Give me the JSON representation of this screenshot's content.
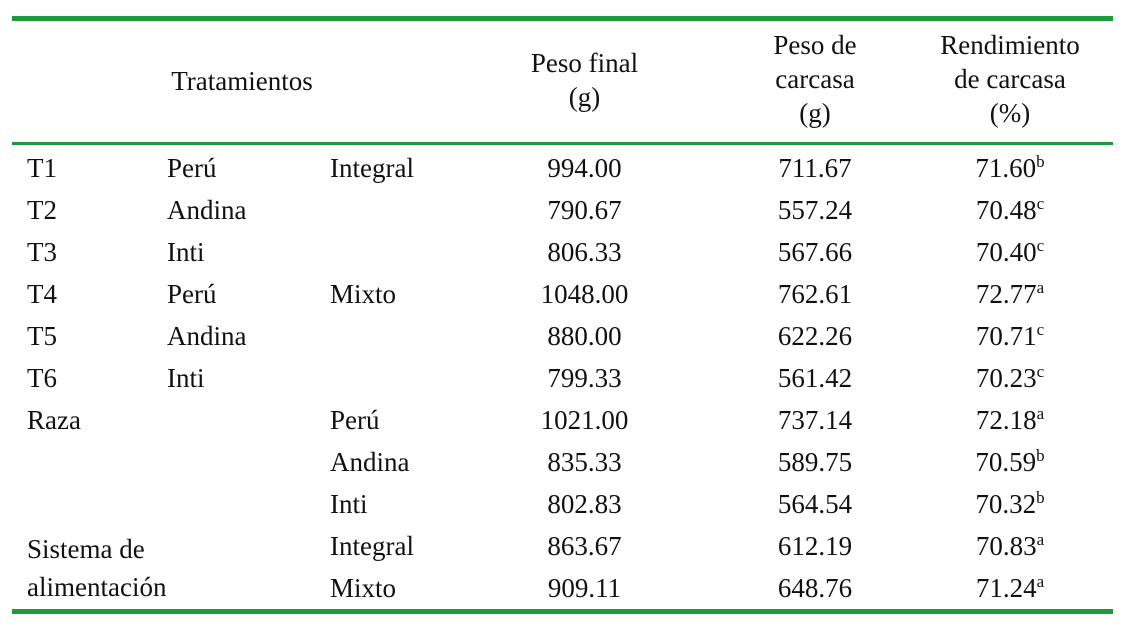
{
  "header": {
    "tratamientos": "Tratamientos",
    "peso_final": [
      "Peso final",
      "(g)"
    ],
    "peso_carcasa": [
      "Peso de",
      "carcasa",
      "(g)"
    ],
    "rendimiento": [
      "Rendimiento",
      "de carcasa",
      "(%)"
    ]
  },
  "rows": [
    {
      "c1": "T1",
      "c2": "Perú",
      "c3": "Integral",
      "peso_final": "994.00",
      "peso_carcasa": "711.67",
      "rend": "71.60",
      "sup": "b"
    },
    {
      "c1": "T2",
      "c2": "Andina",
      "c3": "",
      "peso_final": "790.67",
      "peso_carcasa": "557.24",
      "rend": "70.48",
      "sup": "c"
    },
    {
      "c1": "T3",
      "c2": "Inti",
      "c3": "",
      "peso_final": "806.33",
      "peso_carcasa": "567.66",
      "rend": "70.40",
      "sup": "c"
    },
    {
      "c1": "T4",
      "c2": "Perú",
      "c3": "Mixto",
      "peso_final": "1048.00",
      "peso_carcasa": "762.61",
      "rend": "72.77",
      "sup": "a"
    },
    {
      "c1": "T5",
      "c2": "Andina",
      "c3": "",
      "peso_final": "880.00",
      "peso_carcasa": "622.26",
      "rend": "70.71",
      "sup": "c"
    },
    {
      "c1": "T6",
      "c2": "Inti",
      "c3": "",
      "peso_final": "799.33",
      "peso_carcasa": "561.42",
      "rend": "70.23",
      "sup": "c"
    },
    {
      "c1": "Raza",
      "c2": "",
      "c3": "Perú",
      "peso_final": "1021.00",
      "peso_carcasa": "737.14",
      "rend": "72.18",
      "sup": "a"
    },
    {
      "c1": "",
      "c2": "",
      "c3": "Andina",
      "peso_final": "835.33",
      "peso_carcasa": "589.75",
      "rend": "70.59",
      "sup": "b"
    },
    {
      "c1": "",
      "c2": "",
      "c3": "Inti",
      "peso_final": "802.83",
      "peso_carcasa": "564.54",
      "rend": "70.32",
      "sup": "b"
    },
    {
      "c1": "",
      "c2": "",
      "c3": "Integral",
      "peso_final": "863.67",
      "peso_carcasa": "612.19",
      "rend": "70.83",
      "sup": "a"
    },
    {
      "c1": "",
      "c2": "",
      "c3": "Mixto",
      "peso_final": "909.11",
      "peso_carcasa": "648.76",
      "rend": "71.24",
      "sup": "a"
    }
  ],
  "sistema_label": [
    "Sistema de",
    "alimentación"
  ]
}
